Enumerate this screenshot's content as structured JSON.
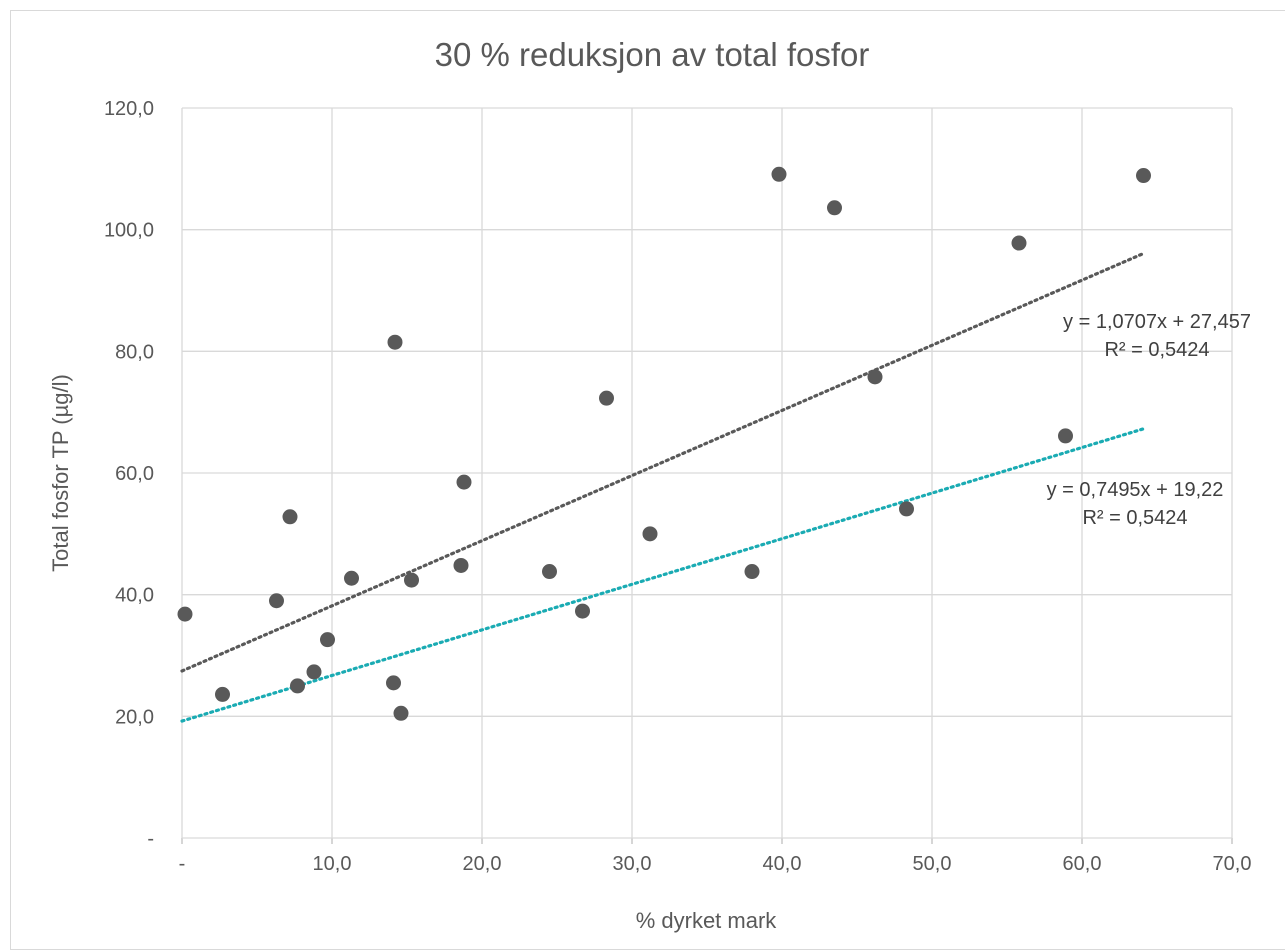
{
  "chart_data": {
    "type": "scatter",
    "title": "30 % reduksjon av total fosfor",
    "xlabel": "% dyrket mark",
    "ylabel": "Total fosfor TP (µg/l)",
    "xlim": [
      0,
      70
    ],
    "ylim": [
      0,
      120
    ],
    "grid": true,
    "x_ticks": [
      "-",
      "10,0",
      "20,0",
      "30,0",
      "40,0",
      "50,0",
      "60,0",
      "70,0"
    ],
    "y_ticks": [
      "-",
      "20,0",
      "40,0",
      "60,0",
      "80,0",
      "100,0",
      "120,0"
    ],
    "marker_color": "#595959",
    "series": [
      {
        "points": [
          [
            0.2,
            36.8
          ],
          [
            2.7,
            23.6
          ],
          [
            6.3,
            39.0
          ],
          [
            7.2,
            52.8
          ],
          [
            7.7,
            25.0
          ],
          [
            8.8,
            27.3
          ],
          [
            9.7,
            32.6
          ],
          [
            11.3,
            42.7
          ],
          [
            14.1,
            25.5
          ],
          [
            14.2,
            81.5
          ],
          [
            14.6,
            20.5
          ],
          [
            15.3,
            42.4
          ],
          [
            18.6,
            44.8
          ],
          [
            18.8,
            58.5
          ],
          [
            24.5,
            43.8
          ],
          [
            26.7,
            37.3
          ],
          [
            28.3,
            72.3
          ],
          [
            31.2,
            50.0
          ],
          [
            38.0,
            43.8
          ],
          [
            39.8,
            109.1
          ],
          [
            43.5,
            103.6
          ],
          [
            46.2,
            75.8
          ],
          [
            48.3,
            54.1
          ],
          [
            55.8,
            97.8
          ],
          [
            58.9,
            66.1
          ],
          [
            64.1,
            108.9
          ]
        ]
      }
    ],
    "trendlines": [
      {
        "slope": 1.0707,
        "intercept": 27.457,
        "x_range": [
          0,
          64.1
        ],
        "color": "#595959",
        "equation": "y = 1,0707x + 27,457",
        "r2": "R² = 0,5424"
      },
      {
        "slope": 0.7495,
        "intercept": 19.22,
        "x_range": [
          0,
          64.1
        ],
        "color": "#1aabb3",
        "equation": "y = 0,7495x + 19,22",
        "r2": "R² = 0,5424"
      }
    ]
  }
}
